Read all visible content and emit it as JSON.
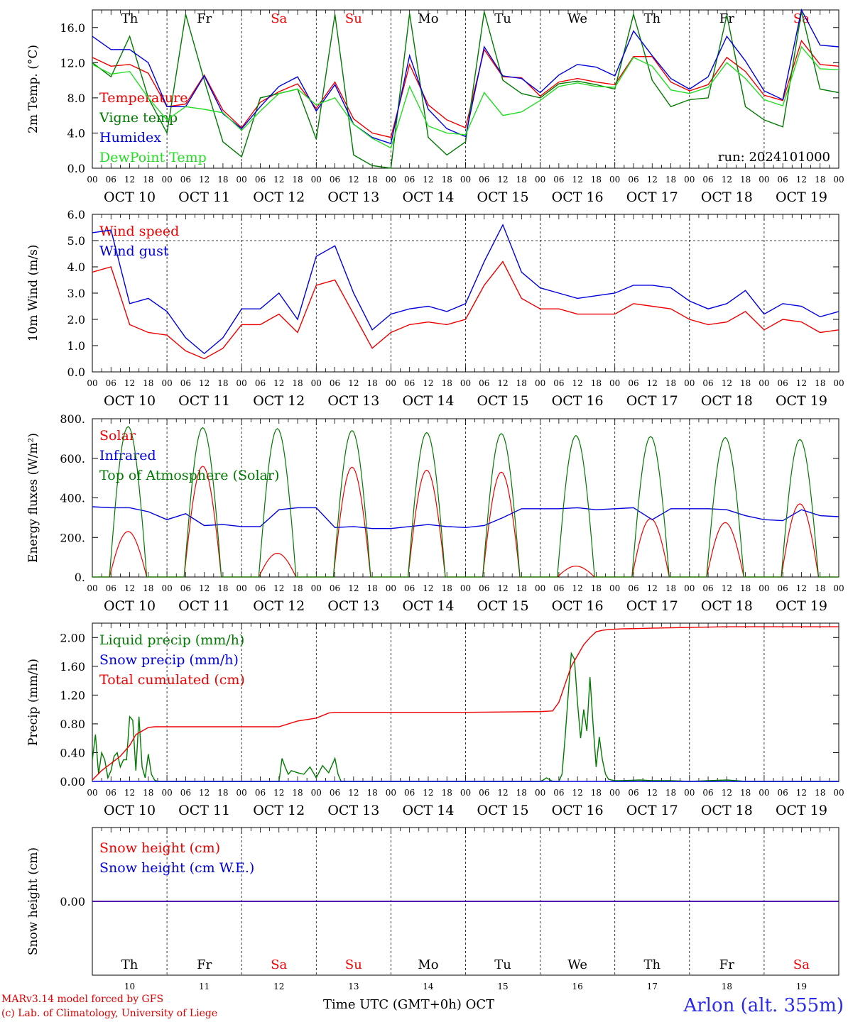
{
  "run_label": "run: 2024101000",
  "days": {
    "weekday_labels": [
      "Th",
      "Fr",
      "Sa",
      "Su",
      "Mo",
      "Tu",
      "We",
      "Th",
      "Fr",
      "Sa"
    ],
    "weekend_flags": [
      false,
      false,
      true,
      true,
      false,
      false,
      false,
      false,
      false,
      true
    ],
    "date_labels": [
      "OCT 10",
      "OCT 11",
      "OCT 12",
      "OCT 13",
      "OCT 14",
      "OCT 15",
      "OCT 16",
      "OCT 17",
      "OCT 18",
      "OCT 19"
    ],
    "hour_ticks": [
      "00",
      "06",
      "12",
      "18"
    ],
    "day_numbers": [
      "10",
      "11",
      "12",
      "13",
      "14",
      "15",
      "16",
      "17",
      "18",
      "19"
    ]
  },
  "footer": {
    "credit_line1": "MARv3.14 model forced by GFS",
    "credit_line2": "(c) Lab. of Climatology, University of Liege",
    "x_title": "Time UTC (GMT+0h) OCT",
    "station": "Arlon (alt. 355m)"
  },
  "colors": {
    "red": "#ee0000",
    "green": "#007a00",
    "blue": "#0000dd",
    "lightgreen": "#22dd22",
    "purple": "#800080"
  },
  "chart_data": [
    {
      "type": "line",
      "ylabel": "2m Temp. (°C)",
      "ylim": [
        0,
        18
      ],
      "yticks": [
        "0.0",
        "4.0",
        "8.0",
        "12.0",
        "16.0"
      ],
      "ytick_values": [
        0,
        4,
        8,
        12,
        16
      ],
      "x_unit": "hours since Oct 10 00 UTC",
      "series": [
        {
          "name": "Temperature",
          "color": "#ee0000",
          "x": [
            0,
            6,
            12,
            18,
            24,
            30,
            36,
            42,
            48,
            54,
            60,
            66,
            72,
            78,
            84,
            90,
            96,
            102,
            108,
            114,
            120,
            126,
            132,
            138,
            144,
            150,
            156,
            162,
            168,
            174,
            180,
            186,
            192,
            198,
            204,
            210,
            216,
            222,
            228,
            234,
            240
          ],
          "y": [
            12.6,
            11.6,
            11.8,
            10.8,
            7.0,
            7.3,
            10.6,
            6.6,
            4.6,
            7.5,
            8.7,
            9.6,
            6.8,
            9.8,
            5.6,
            4.0,
            3.5,
            11.8,
            7.2,
            5.5,
            4.6,
            13.5,
            10.4,
            10.3,
            8.2,
            9.8,
            10.2,
            9.8,
            9.5,
            12.7,
            12.7,
            9.8,
            8.8,
            9.5,
            12.6,
            11.0,
            8.3,
            7.7,
            14.5,
            11.8,
            11.6
          ]
        },
        {
          "name": "Vigne temp",
          "color": "#007a00",
          "x": [
            0,
            6,
            12,
            18,
            24,
            30,
            36,
            42,
            48,
            54,
            60,
            66,
            72,
            78,
            84,
            90,
            96,
            102,
            108,
            114,
            120,
            126,
            132,
            138,
            144,
            150,
            156,
            162,
            168,
            174,
            180,
            186,
            192,
            198,
            204,
            210,
            216,
            222,
            228,
            234,
            240
          ],
          "y": [
            12.0,
            10.4,
            15.0,
            8.0,
            4.0,
            17.5,
            10.0,
            3.0,
            1.3,
            8.0,
            8.5,
            9.0,
            3.3,
            17.5,
            1.5,
            0.3,
            0.0,
            17.6,
            3.5,
            1.5,
            3.0,
            17.8,
            10.0,
            8.5,
            8.0,
            9.6,
            9.9,
            9.5,
            9.0,
            17.5,
            10.0,
            7.0,
            7.8,
            8.0,
            17.4,
            7.0,
            5.5,
            4.7,
            17.8,
            9.0,
            8.6
          ]
        },
        {
          "name": "Humidex",
          "color": "#0000dd",
          "x": [
            0,
            6,
            12,
            18,
            24,
            30,
            36,
            42,
            48,
            54,
            60,
            66,
            72,
            78,
            84,
            90,
            96,
            102,
            108,
            114,
            120,
            126,
            132,
            138,
            144,
            150,
            156,
            162,
            168,
            174,
            180,
            186,
            192,
            198,
            204,
            210,
            216,
            222,
            228,
            234,
            240
          ],
          "y": [
            15.0,
            13.5,
            13.5,
            12.0,
            7.0,
            7.0,
            10.5,
            6.2,
            4.5,
            7.0,
            9.3,
            10.4,
            6.5,
            9.5,
            5.0,
            3.5,
            2.8,
            12.8,
            6.7,
            4.5,
            3.6,
            13.8,
            10.5,
            10.2,
            8.6,
            10.6,
            11.8,
            11.5,
            10.5,
            15.6,
            12.8,
            10.2,
            9.0,
            10.4,
            15.0,
            12.2,
            8.8,
            7.8,
            18.0,
            14.0,
            13.8
          ]
        },
        {
          "name": "DewPoint Temp",
          "color": "#22dd22",
          "x": [
            0,
            6,
            12,
            18,
            24,
            30,
            36,
            42,
            48,
            54,
            60,
            66,
            72,
            78,
            84,
            90,
            96,
            102,
            108,
            114,
            120,
            126,
            132,
            138,
            144,
            150,
            156,
            162,
            168,
            174,
            180,
            186,
            192,
            198,
            204,
            210,
            216,
            222,
            228,
            234,
            240
          ],
          "y": [
            11.8,
            10.7,
            11.0,
            8.0,
            5.5,
            7.0,
            6.7,
            6.3,
            4.3,
            6.5,
            8.5,
            9.0,
            7.2,
            8.0,
            5.0,
            3.4,
            2.3,
            9.3,
            4.8,
            4.0,
            3.8,
            8.6,
            6.0,
            6.4,
            7.7,
            9.3,
            9.7,
            9.3,
            9.2,
            12.6,
            11.6,
            8.9,
            8.5,
            9.2,
            12.0,
            10.2,
            7.8,
            7.1,
            13.8,
            11.3,
            11.2
          ]
        }
      ]
    },
    {
      "type": "line",
      "ylabel": "10m Wind (m/s)",
      "ylim": [
        0,
        6
      ],
      "yticks": [
        "0.0",
        "1.0",
        "2.0",
        "3.0",
        "4.0",
        "5.0",
        "6.0"
      ],
      "ytick_values": [
        0,
        1,
        2,
        3,
        4,
        5,
        6
      ],
      "ref_line": 5.0,
      "series": [
        {
          "name": "Wind speed",
          "color": "#ee0000",
          "x": [
            0,
            6,
            12,
            18,
            24,
            30,
            36,
            42,
            48,
            54,
            60,
            66,
            72,
            78,
            84,
            90,
            96,
            102,
            108,
            114,
            120,
            126,
            132,
            138,
            144,
            150,
            156,
            162,
            168,
            174,
            180,
            186,
            192,
            198,
            204,
            210,
            216,
            222,
            228,
            234,
            240
          ],
          "y": [
            3.8,
            4.0,
            1.8,
            1.5,
            1.4,
            0.8,
            0.5,
            0.9,
            1.8,
            1.8,
            2.2,
            1.5,
            3.3,
            3.5,
            2.2,
            0.9,
            1.5,
            1.8,
            1.9,
            1.8,
            2.0,
            3.3,
            4.2,
            2.8,
            2.4,
            2.4,
            2.2,
            2.2,
            2.2,
            2.6,
            2.5,
            2.4,
            2.0,
            1.8,
            1.9,
            2.3,
            1.6,
            2.0,
            1.9,
            1.5,
            1.6
          ]
        },
        {
          "name": "Wind gust",
          "color": "#0000dd",
          "x": [
            0,
            6,
            12,
            18,
            24,
            30,
            36,
            42,
            48,
            54,
            60,
            66,
            72,
            78,
            84,
            90,
            96,
            102,
            108,
            114,
            120,
            126,
            132,
            138,
            144,
            150,
            156,
            162,
            168,
            174,
            180,
            186,
            192,
            198,
            204,
            210,
            216,
            222,
            228,
            234,
            240
          ],
          "y": [
            5.3,
            5.4,
            2.6,
            2.8,
            2.3,
            1.3,
            0.7,
            1.3,
            2.4,
            2.4,
            3.0,
            2.0,
            4.4,
            4.8,
            3.0,
            1.6,
            2.2,
            2.4,
            2.5,
            2.3,
            2.6,
            4.2,
            5.6,
            3.8,
            3.2,
            3.0,
            2.8,
            2.9,
            3.0,
            3.3,
            3.3,
            3.2,
            2.7,
            2.4,
            2.6,
            3.1,
            2.2,
            2.6,
            2.5,
            2.1,
            2.3
          ]
        }
      ]
    },
    {
      "type": "line",
      "ylabel": "Energy fluxes (W/m²)",
      "ylim": [
        0,
        800
      ],
      "yticks": [
        "0.",
        "200.",
        "400.",
        "600.",
        "800."
      ],
      "ytick_values": [
        0,
        200,
        400,
        600,
        800
      ],
      "series": [
        {
          "name": "Solar",
          "color": "#ee0000",
          "daily_peak": [
            230,
            560,
            120,
            555,
            540,
            530,
            55,
            295,
            275,
            370
          ]
        },
        {
          "name": "Infrared",
          "color": "#0000dd",
          "x": [
            0,
            6,
            12,
            18,
            24,
            30,
            36,
            42,
            48,
            54,
            60,
            66,
            72,
            78,
            84,
            90,
            96,
            102,
            108,
            114,
            120,
            126,
            132,
            138,
            144,
            150,
            156,
            162,
            168,
            174,
            180,
            186,
            192,
            198,
            204,
            210,
            216,
            222,
            228,
            234,
            240
          ],
          "y": [
            355,
            350,
            350,
            330,
            290,
            320,
            260,
            265,
            255,
            255,
            340,
            350,
            350,
            250,
            255,
            245,
            245,
            255,
            265,
            255,
            250,
            260,
            300,
            345,
            345,
            345,
            350,
            340,
            345,
            350,
            290,
            345,
            345,
            345,
            340,
            310,
            290,
            285,
            340,
            310,
            305
          ]
        },
        {
          "name": "Top of Atmosphere (Solar)",
          "color": "#007a00",
          "daily_peak": [
            760,
            755,
            750,
            740,
            730,
            725,
            715,
            710,
            705,
            695
          ]
        }
      ]
    },
    {
      "type": "line",
      "ylabel": "Precip (mm/h)",
      "ylim": [
        0,
        2.2
      ],
      "yticks": [
        "0.00",
        "0.40",
        "0.80",
        "1.20",
        "1.60",
        "2.00"
      ],
      "ytick_values": [
        0,
        0.4,
        0.8,
        1.2,
        1.6,
        2.0
      ],
      "series": [
        {
          "name": "Liquid precip (mm/h)",
          "color": "#007a00",
          "x": [
            0,
            1,
            2,
            3,
            4,
            5,
            6,
            7,
            8,
            9,
            10,
            11,
            12,
            13,
            14,
            15,
            16,
            17,
            18,
            19,
            20,
            21,
            22,
            24,
            60,
            61,
            62,
            63,
            64,
            66,
            68,
            70,
            72,
            74,
            76,
            78,
            79,
            80,
            84,
            144,
            145,
            146,
            148,
            150,
            151,
            152,
            153,
            154,
            155,
            156,
            157,
            158,
            159,
            160,
            161,
            162,
            163,
            164,
            165,
            166,
            167,
            168,
            170,
            176,
            180,
            186,
            192,
            204,
            210,
            240
          ],
          "y": [
            0.3,
            0.65,
            0.1,
            0.4,
            0.3,
            0.05,
            0.15,
            0.35,
            0.4,
            0.2,
            0.3,
            0.3,
            0.9,
            0.85,
            0.15,
            0.9,
            0.2,
            0.05,
            0.38,
            0.1,
            0.02,
            0.0,
            0.0,
            0.0,
            0.0,
            0.32,
            0.2,
            0.1,
            0.15,
            0.12,
            0.1,
            0.2,
            0.05,
            0.22,
            0.12,
            0.32,
            0.1,
            0.0,
            0.0,
            0.0,
            0.02,
            0.05,
            0.0,
            0.0,
            0.1,
            0.6,
            1.2,
            1.78,
            1.7,
            1.1,
            0.6,
            1.0,
            0.7,
            1.45,
            0.8,
            0.2,
            0.62,
            0.3,
            0.1,
            0.03,
            0.02,
            0.01,
            0.01,
            0.02,
            0.01,
            0.01,
            0.0,
            0.02,
            0.0,
            0.0
          ]
        },
        {
          "name": "Snow precip (mm/h)",
          "color": "#0000dd",
          "x": [
            0,
            240
          ],
          "y": [
            0,
            0
          ]
        },
        {
          "name": "Total cumulated (cm)",
          "color": "#ee0000",
          "x": [
            0,
            3,
            6,
            9,
            12,
            14,
            16,
            18,
            20,
            24,
            36,
            48,
            60,
            66,
            72,
            76,
            78,
            84,
            96,
            120,
            144,
            148,
            150,
            152,
            154,
            156,
            158,
            160,
            162,
            164,
            166,
            170,
            180,
            192,
            204,
            216,
            240
          ],
          "y": [
            0.02,
            0.15,
            0.25,
            0.35,
            0.5,
            0.65,
            0.7,
            0.75,
            0.76,
            0.76,
            0.76,
            0.76,
            0.76,
            0.84,
            0.88,
            0.95,
            0.96,
            0.96,
            0.96,
            0.96,
            0.97,
            0.98,
            1.1,
            1.35,
            1.6,
            1.75,
            1.9,
            2.0,
            2.08,
            2.1,
            2.11,
            2.12,
            2.13,
            2.14,
            2.15,
            2.15,
            2.15
          ]
        }
      ]
    },
    {
      "type": "line",
      "ylabel": "Snow height (cm)",
      "yticks": [
        "0.00"
      ],
      "ytick_values": [
        0
      ],
      "ylim": [
        -1,
        1
      ],
      "series": [
        {
          "name": "Snow height (cm)",
          "color": "#ee0000",
          "x": [
            0,
            240
          ],
          "y": [
            0,
            0
          ]
        },
        {
          "name": "Snow height (cm W.E.)",
          "color": "#0000dd",
          "x": [
            0,
            240
          ],
          "y": [
            0,
            0
          ]
        }
      ]
    }
  ]
}
